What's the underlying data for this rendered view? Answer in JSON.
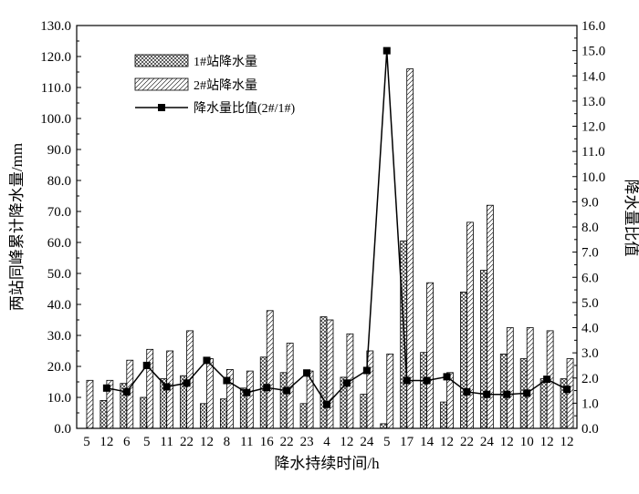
{
  "chart_data": {
    "type": "bar",
    "xlabel": "降水持续时间/h",
    "ylabel": "两站同峰累计降水量/mm",
    "y2label": "降水量比值",
    "ylim": [
      0,
      130
    ],
    "y2lim": [
      0,
      16
    ],
    "yticks": [
      "0.0",
      "10.0",
      "20.0",
      "30.0",
      "40.0",
      "50.0",
      "60.0",
      "70.0",
      "80.0",
      "90.0",
      "100.0",
      "110.0",
      "120.0",
      "130.0"
    ],
    "y2ticks": [
      "0.0",
      "1.0",
      "2.0",
      "3.0",
      "4.0",
      "5.0",
      "6.0",
      "7.0",
      "8.0",
      "9.0",
      "10.0",
      "11.0",
      "12.0",
      "13.0",
      "14.0",
      "15.0",
      "16.0"
    ],
    "categories": [
      "5",
      "12",
      "6",
      "5",
      "11",
      "22",
      "12",
      "8",
      "11",
      "16",
      "22",
      "23",
      "4",
      "12",
      "24",
      "5",
      "17",
      "14",
      "12",
      "22",
      "24",
      "12",
      "10",
      "12",
      "12"
    ],
    "series": [
      {
        "name": "1#站降水量",
        "type": "bar",
        "pattern": "crosshatch",
        "values": [
          0,
          9,
          14.5,
          10,
          16,
          17,
          8,
          9.5,
          13,
          23,
          18,
          8,
          36,
          16.5,
          11,
          1.5,
          60.5,
          24.5,
          8.5,
          44,
          51,
          24,
          22.5,
          16,
          16
        ]
      },
      {
        "name": "2#站降水量",
        "type": "bar",
        "pattern": "diagonal",
        "values": [
          15.5,
          15.5,
          22,
          25.5,
          25,
          31.5,
          22.5,
          19,
          18.5,
          38,
          27.5,
          18.5,
          35,
          30.5,
          25,
          24,
          116,
          47,
          18,
          66.5,
          72,
          32.5,
          32.5,
          31.5,
          22.5
        ]
      },
      {
        "name": "降水量比值(2#/1#)",
        "type": "line",
        "axis": "right",
        "values": [
          null,
          1.6,
          1.45,
          2.5,
          1.65,
          1.8,
          2.7,
          1.9,
          1.42,
          1.62,
          1.5,
          2.2,
          0.95,
          1.8,
          2.3,
          15,
          1.9,
          1.9,
          2.05,
          1.45,
          1.35,
          1.35,
          1.4,
          1.95,
          1.55
        ]
      }
    ],
    "legend": "top-left",
    "grid": false
  }
}
